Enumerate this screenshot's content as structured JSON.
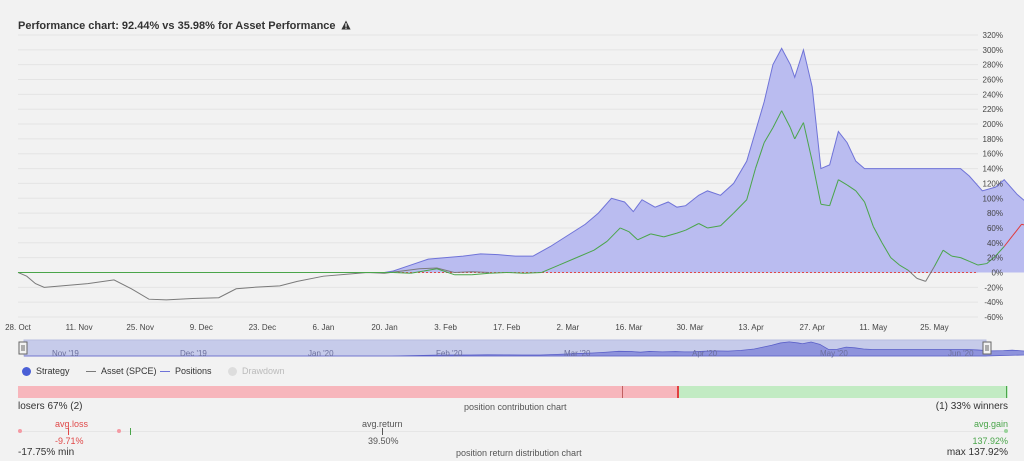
{
  "title": "Performance chart: 92.44% vs 35.98% for Asset Performance",
  "warning_icon": "warning-triangle-icon",
  "colors": {
    "positions_fill": "#babcf0",
    "positions_line": "#6f73d8",
    "strategy_up": "#4aa54a",
    "strategy_down": "#e03b3b",
    "asset": "#7a7a7a",
    "zero_line": "#e04848"
  },
  "chart_data": {
    "type": "area",
    "ylim": [
      -60,
      320
    ],
    "yticks": [
      "-60%",
      "-40%",
      "-20%",
      "0%",
      "20%",
      "40%",
      "60%",
      "80%",
      "100%",
      "120%",
      "140%",
      "160%",
      "180%",
      "200%",
      "220%",
      "240%",
      "260%",
      "280%",
      "300%",
      "320%"
    ],
    "xticks": [
      "28. Oct",
      "11. Nov",
      "25. Nov",
      "9. Dec",
      "23. Dec",
      "6. Jan",
      "20. Jan",
      "3. Feb",
      "17. Feb",
      "2. Mar",
      "16. Mar",
      "30. Mar",
      "13. Apr",
      "27. Apr",
      "11. May",
      "25. May"
    ],
    "xlim_days": [
      0,
      220
    ],
    "series": [
      {
        "name": "Positions",
        "points": [
          [
            0,
            0
          ],
          [
            84,
            0
          ],
          [
            86,
            2
          ],
          [
            90,
            10
          ],
          [
            94,
            18
          ],
          [
            98,
            20
          ],
          [
            102,
            22
          ],
          [
            106,
            25
          ],
          [
            110,
            24
          ],
          [
            114,
            22
          ],
          [
            118,
            22
          ],
          [
            122,
            35
          ],
          [
            126,
            50
          ],
          [
            130,
            65
          ],
          [
            133,
            80
          ],
          [
            136,
            100
          ],
          [
            139,
            95
          ],
          [
            141,
            82
          ],
          [
            143,
            98
          ],
          [
            146,
            88
          ],
          [
            149,
            95
          ],
          [
            151,
            88
          ],
          [
            153,
            90
          ],
          [
            156,
            104
          ],
          [
            158,
            110
          ],
          [
            161,
            104
          ],
          [
            164,
            120
          ],
          [
            167,
            150
          ],
          [
            169,
            190
          ],
          [
            171,
            230
          ],
          [
            173,
            280
          ],
          [
            175,
            302
          ],
          [
            177,
            280
          ],
          [
            178,
            263
          ],
          [
            180,
            300
          ],
          [
            182,
            250
          ],
          [
            184,
            140
          ],
          [
            186,
            145
          ],
          [
            188,
            190
          ],
          [
            190,
            175
          ],
          [
            192,
            150
          ],
          [
            194,
            140
          ],
          [
            216,
            140
          ],
          [
            218,
            130
          ],
          [
            221,
            110
          ],
          [
            224,
            115
          ],
          [
            226,
            125
          ],
          [
            229,
            105
          ],
          [
            232,
            90
          ],
          [
            235,
            100
          ],
          [
            238,
            145
          ],
          [
            240,
            130
          ],
          [
            242,
            120
          ],
          [
            245,
            95
          ],
          [
            252,
            95
          ],
          [
            254,
            92
          ],
          [
            256,
            92
          ]
        ]
      },
      {
        "name": "Strategy",
        "points": [
          [
            0,
            0
          ],
          [
            84,
            0
          ],
          [
            86,
            0
          ],
          [
            90,
            -1
          ],
          [
            93,
            2
          ],
          [
            96,
            5
          ],
          [
            100,
            -3
          ],
          [
            104,
            -3
          ],
          [
            108,
            -1
          ],
          [
            112,
            0
          ],
          [
            116,
            -1
          ],
          [
            120,
            0
          ],
          [
            124,
            10
          ],
          [
            128,
            20
          ],
          [
            132,
            30
          ],
          [
            135,
            42
          ],
          [
            138,
            60
          ],
          [
            140,
            55
          ],
          [
            142,
            44
          ],
          [
            145,
            52
          ],
          [
            148,
            48
          ],
          [
            151,
            53
          ],
          [
            153,
            57
          ],
          [
            156,
            66
          ],
          [
            158,
            60
          ],
          [
            161,
            63
          ],
          [
            164,
            80
          ],
          [
            167,
            98
          ],
          [
            169,
            140
          ],
          [
            171,
            175
          ],
          [
            173,
            195
          ],
          [
            175,
            218
          ],
          [
            177,
            195
          ],
          [
            178,
            180
          ],
          [
            180,
            202
          ],
          [
            182,
            150
          ],
          [
            184,
            92
          ],
          [
            186,
            90
          ],
          [
            188,
            125
          ],
          [
            190,
            118
          ],
          [
            192,
            110
          ],
          [
            194,
            95
          ],
          [
            196,
            62
          ],
          [
            198,
            40
          ],
          [
            200,
            20
          ],
          [
            202,
            10
          ],
          [
            204,
            3
          ],
          [
            206,
            -8
          ],
          [
            208,
            -12
          ],
          [
            210,
            8
          ],
          [
            212,
            30
          ],
          [
            214,
            22
          ],
          [
            216,
            20
          ],
          [
            218,
            15
          ],
          [
            220,
            10
          ],
          [
            222,
            12
          ],
          [
            224,
            22
          ],
          [
            226,
            35
          ],
          [
            228,
            50
          ],
          [
            230,
            65
          ],
          [
            232,
            62
          ],
          [
            234,
            50
          ],
          [
            236,
            45
          ],
          [
            238,
            53
          ],
          [
            240,
            48
          ],
          [
            242,
            56
          ],
          [
            244,
            48
          ],
          [
            246,
            42
          ],
          [
            248,
            55
          ],
          [
            250,
            52
          ],
          [
            252,
            40
          ],
          [
            254,
            35
          ],
          [
            256,
            36
          ]
        ]
      },
      {
        "name": "Asset (SPCE)",
        "points": [
          [
            0,
            0
          ],
          [
            2,
            -5
          ],
          [
            4,
            -15
          ],
          [
            6,
            -20
          ],
          [
            10,
            -18
          ],
          [
            16,
            -15
          ],
          [
            22,
            -10
          ],
          [
            26,
            -22
          ],
          [
            30,
            -36
          ],
          [
            34,
            -37
          ],
          [
            40,
            -35
          ],
          [
            46,
            -34
          ],
          [
            48,
            -28
          ],
          [
            50,
            -22
          ],
          [
            54,
            -20
          ],
          [
            60,
            -18
          ],
          [
            64,
            -12
          ],
          [
            70,
            -5
          ],
          [
            76,
            -2
          ],
          [
            80,
            0
          ],
          [
            84,
            -1
          ],
          [
            88,
            2
          ],
          [
            92,
            5
          ],
          [
            96,
            6
          ],
          [
            100,
            0
          ],
          [
            104,
            1
          ],
          [
            108,
            0
          ]
        ]
      },
      {
        "name": "Drawdown",
        "points": []
      }
    ]
  },
  "navigator": {
    "labels": [
      "Nov '19",
      "Dec '19",
      "Jan '20",
      "Feb '20",
      "Mar '20",
      "Apr '20",
      "May '20",
      "Jun '20"
    ]
  },
  "legend": {
    "strategy": "Strategy",
    "asset": "Asset (SPCE)",
    "positions": "Positions",
    "drawdown": "Drawdown"
  },
  "contribution": {
    "losers_label": "losers 67% (2)",
    "title": "position contribution chart",
    "winners_label": "(1) 33% winners",
    "losers_fraction": 0.667
  },
  "distribution": {
    "avg_loss_label": "avg.loss",
    "avg_loss_value": "-9.71%",
    "avg_return_label": "avg.return",
    "avg_return_value": "39.50%",
    "avg_gain_label": "avg.gain",
    "avg_gain_value": "137.92%",
    "min_label": "-17.75% min",
    "title": "position return distribution chart",
    "max_label": "max 137.92%"
  }
}
